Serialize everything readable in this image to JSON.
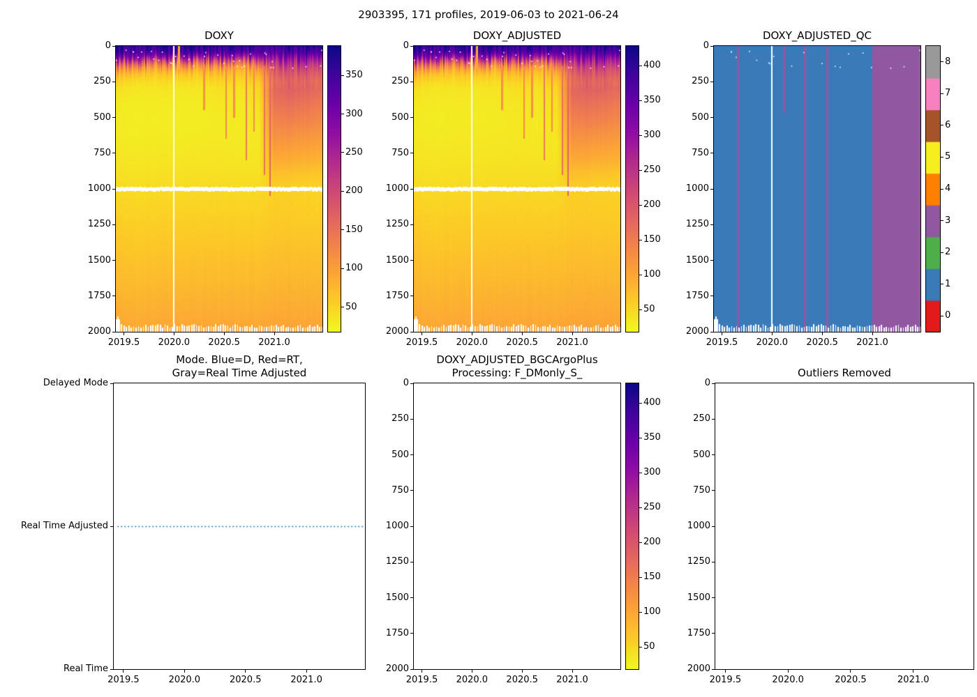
{
  "figure": {
    "title": "2903395, 171 profiles, 2019-06-03 to 2021-06-24",
    "float_id": "2903395",
    "n_profiles": 171,
    "date_range": "2019-06-03 to 2021-06-24"
  },
  "axes": {
    "x_tick_labels": [
      "2019.5",
      "2020.0",
      "2020.5",
      "2021.0"
    ],
    "x_tick_values": [
      2019.5,
      2020.0,
      2020.5,
      2021.0
    ],
    "depth_tick_labels": [
      "0",
      "250",
      "500",
      "750",
      "1000",
      "1250",
      "1500",
      "1750",
      "2000"
    ],
    "depth_tick_values": [
      0,
      250,
      500,
      750,
      1000,
      1250,
      1500,
      1750,
      2000
    ]
  },
  "chart_data": [
    {
      "id": "doxy",
      "type": "heatmap",
      "title": "DOXY",
      "x_range": [
        2019.42,
        2021.48
      ],
      "y_range": [
        0,
        2000
      ],
      "colormap": "plasma_reversed",
      "vmin": 18,
      "vmax": 388,
      "colorbar_tick_values": [
        50,
        100,
        150,
        200,
        250,
        300,
        350
      ],
      "colorbar_tick_labels": [
        "50",
        "100",
        "150",
        "200",
        "250",
        "300",
        "350"
      ],
      "grid_times": [
        2019.45,
        2019.65,
        2019.85,
        2020.05,
        2020.25,
        2020.45,
        2020.65,
        2020.85,
        2021.0,
        2021.2,
        2021.45
      ],
      "grid_depths": [
        0,
        40,
        80,
        120,
        160,
        200,
        250,
        300,
        400,
        500,
        600,
        700,
        800,
        900,
        1000,
        1200,
        1400,
        1600,
        1800,
        2000
      ],
      "grid_values": [
        [
          368,
          362,
          365,
          360,
          363,
          366,
          361,
          364,
          360,
          362,
          358
        ],
        [
          352,
          345,
          348,
          342,
          346,
          349,
          344,
          347,
          342,
          345,
          340
        ],
        [
          300,
          270,
          280,
          262,
          272,
          283,
          266,
          276,
          285,
          290,
          278
        ],
        [
          190,
          150,
          165,
          148,
          158,
          170,
          152,
          168,
          230,
          240,
          225
        ],
        [
          115,
          88,
          96,
          86,
          92,
          102,
          90,
          108,
          195,
          205,
          190
        ],
        [
          75,
          58,
          63,
          56,
          60,
          70,
          62,
          80,
          175,
          182,
          168
        ],
        [
          50,
          41,
          44,
          40,
          42,
          50,
          45,
          60,
          160,
          165,
          152
        ],
        [
          38,
          33,
          35,
          32,
          34,
          40,
          37,
          48,
          165,
          170,
          158
        ],
        [
          31,
          29,
          30,
          29,
          30,
          34,
          32,
          40,
          150,
          152,
          140
        ],
        [
          29,
          28,
          29,
          28,
          29,
          31,
          30,
          36,
          135,
          136,
          126
        ],
        [
          30,
          29,
          30,
          29,
          30,
          31,
          30,
          34,
          120,
          118,
          110
        ],
        [
          32,
          31,
          32,
          31,
          32,
          33,
          32,
          34,
          104,
          100,
          94
        ],
        [
          35,
          34,
          35,
          34,
          35,
          36,
          35,
          36,
          88,
          84,
          79
        ],
        [
          39,
          38,
          39,
          38,
          39,
          40,
          39,
          40,
          68,
          64,
          60
        ],
        [
          44,
          43,
          44,
          43,
          44,
          45,
          44,
          45,
          54,
          52,
          50
        ],
        [
          53,
          52,
          53,
          52,
          53,
          54,
          53,
          54,
          58,
          57,
          55
        ],
        [
          62,
          61,
          62,
          61,
          62,
          63,
          62,
          63,
          66,
          65,
          64
        ],
        [
          71,
          70,
          71,
          70,
          71,
          72,
          71,
          72,
          75,
          74,
          73
        ],
        [
          81,
          80,
          81,
          80,
          81,
          82,
          81,
          82,
          85,
          84,
          83
        ],
        [
          92,
          91,
          92,
          91,
          92,
          93,
          92,
          93,
          96,
          95,
          94
        ]
      ],
      "streaks": [
        {
          "x": 2020.05,
          "depth_from": 0,
          "depth_to": 170,
          "value": 90
        },
        {
          "x": 2020.3,
          "depth_from": 140,
          "depth_to": 450,
          "value": 110
        },
        {
          "x": 2020.52,
          "depth_from": 140,
          "depth_to": 650,
          "value": 125
        },
        {
          "x": 2020.6,
          "depth_from": 140,
          "depth_to": 500,
          "value": 115
        },
        {
          "x": 2020.72,
          "depth_from": 140,
          "depth_to": 800,
          "value": 140
        },
        {
          "x": 2020.8,
          "depth_from": 140,
          "depth_to": 600,
          "value": 120
        },
        {
          "x": 2020.9,
          "depth_from": 140,
          "depth_to": 900,
          "value": 155
        },
        {
          "x": 2020.96,
          "depth_from": 140,
          "depth_to": 1050,
          "value": 165
        }
      ],
      "missing": {
        "gap_band_depth": [
          988,
          1016
        ],
        "bottom_comb_from": 1948,
        "missing_profile_x": [
          2020.0
        ]
      }
    },
    {
      "id": "doxy_adjusted",
      "type": "heatmap",
      "title": "DOXY_ADJUSTED",
      "x_range": [
        2019.42,
        2021.48
      ],
      "y_range": [
        0,
        2000
      ],
      "colormap": "plasma_reversed",
      "grid_from": "doxy",
      "value_scale": 1.1,
      "vmin": 18,
      "vmax": 428,
      "colorbar_tick_values": [
        50,
        100,
        150,
        200,
        250,
        300,
        350,
        400
      ],
      "colorbar_tick_labels": [
        "50",
        "100",
        "150",
        "200",
        "250",
        "300",
        "350",
        "400"
      ]
    },
    {
      "id": "doxy_adjusted_qc",
      "type": "categorical_heatmap",
      "title": "DOXY_ADJUSTED_QC",
      "x_range": [
        2019.42,
        2021.48
      ],
      "y_range": [
        0,
        2000
      ],
      "qc_scale_values": [
        0,
        1,
        2,
        3,
        4,
        5,
        6,
        7,
        8
      ],
      "qc_colors": [
        "#e31a1c",
        "#3b7ab9",
        "#4daf4a",
        "#9158a2",
        "#ff7f00",
        "#f6ee1f",
        "#a5542a",
        "#f781bf",
        "#999999"
      ],
      "background_qc": 1,
      "regions": [
        {
          "x_from": 2021.0,
          "x_to": 2021.48,
          "qc": 3
        }
      ],
      "flag_columns": [
        {
          "x": 2019.66,
          "depth_to": 2000,
          "qc": 3
        },
        {
          "x": 2020.12,
          "depth_to": 470,
          "qc": 3
        },
        {
          "x": 2020.33,
          "depth_to": 2000,
          "qc": 3
        },
        {
          "x": 2020.55,
          "depth_to": 2000,
          "qc": 3
        }
      ],
      "missing_profile_x": [
        2020.0
      ],
      "colorbar_tick_values": [
        0,
        1,
        2,
        3,
        4,
        5,
        6,
        7,
        8
      ],
      "colorbar_tick_labels": [
        "0",
        "1",
        "2",
        "3",
        "4",
        "5",
        "6",
        "7",
        "8"
      ]
    },
    {
      "id": "mode",
      "type": "line",
      "title": "Mode. Blue=D, Red=RT,\nGray=Real Time Adjusted",
      "x_range": [
        2019.42,
        2021.48
      ],
      "y_categories": [
        "Real Time",
        "Real Time Adjusted",
        "Delayed Mode"
      ],
      "series": [
        {
          "name": "mode",
          "category": "Real Time Adjusted",
          "x_from": 2019.45,
          "x_to": 2021.47,
          "color": "#1f77b4",
          "line_style": "dashed"
        }
      ]
    },
    {
      "id": "bgc",
      "type": "empty_with_colorbar",
      "title": "DOXY_ADJUSTED_BGCArgoPlus\nProcessing: F_DMonly_S_",
      "x_range": [
        2019.42,
        2021.48
      ],
      "y_range": [
        0,
        2000
      ],
      "colormap": "plasma_reversed",
      "vmin": 18,
      "vmax": 428,
      "colorbar_tick_values": [
        50,
        100,
        150,
        200,
        250,
        300,
        350,
        400
      ],
      "colorbar_tick_labels": [
        "50",
        "100",
        "150",
        "200",
        "250",
        "300",
        "350",
        "400"
      ]
    },
    {
      "id": "outliers",
      "type": "empty",
      "title": "Outliers Removed",
      "x_range": [
        2019.42,
        2021.48
      ],
      "y_range": [
        0,
        2000
      ]
    }
  ]
}
